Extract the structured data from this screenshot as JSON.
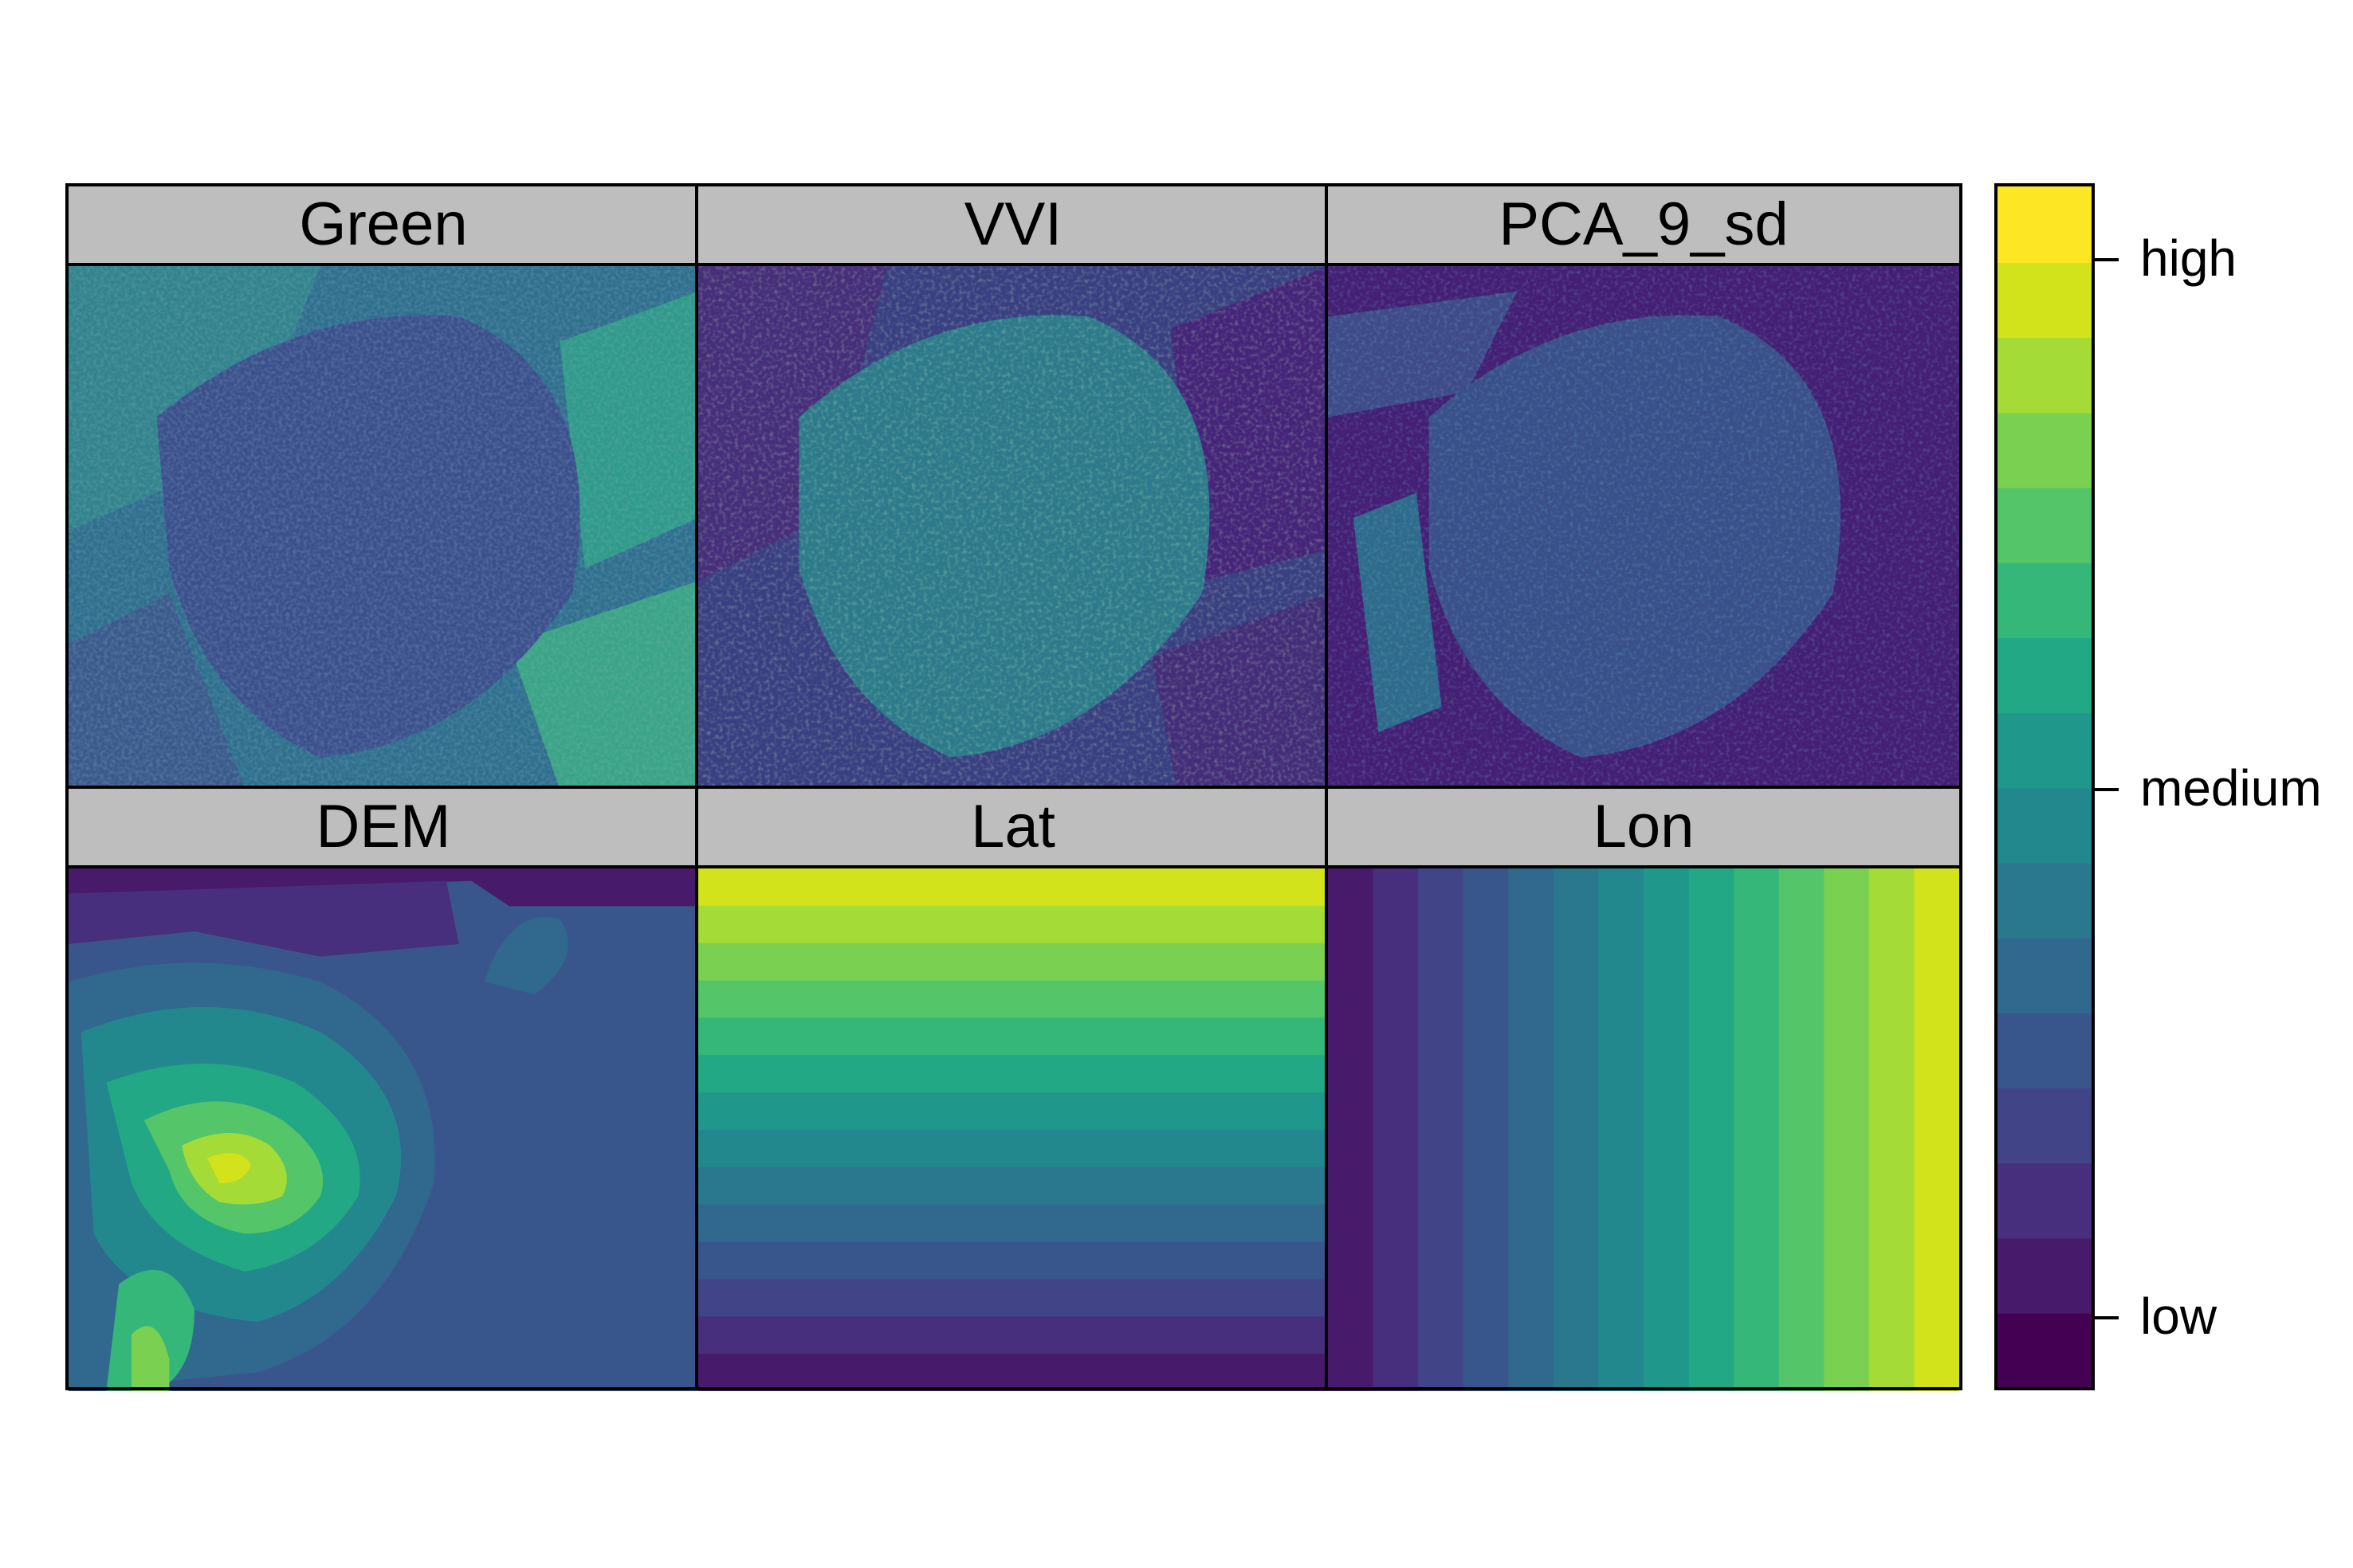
{
  "panels": [
    {
      "title": "Green"
    },
    {
      "title": "VVI"
    },
    {
      "title": "PCA_9_sd"
    },
    {
      "title": "DEM"
    },
    {
      "title": "Lat"
    },
    {
      "title": "Lon"
    }
  ],
  "legend": {
    "labels": [
      "high",
      "medium",
      "low"
    ],
    "palette": [
      "#440154",
      "#481a6c",
      "#472f7d",
      "#414487",
      "#39568c",
      "#31688e",
      "#2a788e",
      "#23888e",
      "#1f988b",
      "#22a884",
      "#35b779",
      "#54c568",
      "#7ad151",
      "#a5db36",
      "#d2e21b",
      "#fde725"
    ]
  }
}
